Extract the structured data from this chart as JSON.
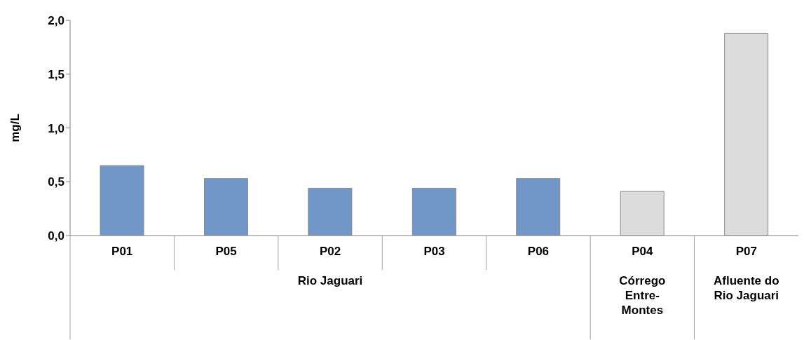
{
  "chart_data": {
    "type": "bar",
    "ylabel": "mg/L",
    "categories": [
      "P01",
      "P05",
      "P02",
      "P03",
      "P06",
      "P04",
      "P07"
    ],
    "values": [
      0.65,
      0.53,
      0.44,
      0.44,
      0.53,
      0.41,
      1.88
    ],
    "colors": [
      "#7196c8",
      "#7196c8",
      "#7196c8",
      "#7196c8",
      "#7196c8",
      "#dcdcdc",
      "#dcdcdc"
    ],
    "ylim": [
      0,
      2
    ],
    "yticks": [
      {
        "value": 0,
        "label": "0,0"
      },
      {
        "value": 0.5,
        "label": "0,5"
      },
      {
        "value": 1,
        "label": "1,0"
      },
      {
        "value": 1.5,
        "label": "1,5"
      },
      {
        "value": 2,
        "label": "2,0"
      }
    ],
    "annotations": [
      "Rio Jaguari",
      "Córrego Entre-Montes",
      "Afluente do Rio Jaguari"
    ],
    "grid": false,
    "legend": false
  }
}
